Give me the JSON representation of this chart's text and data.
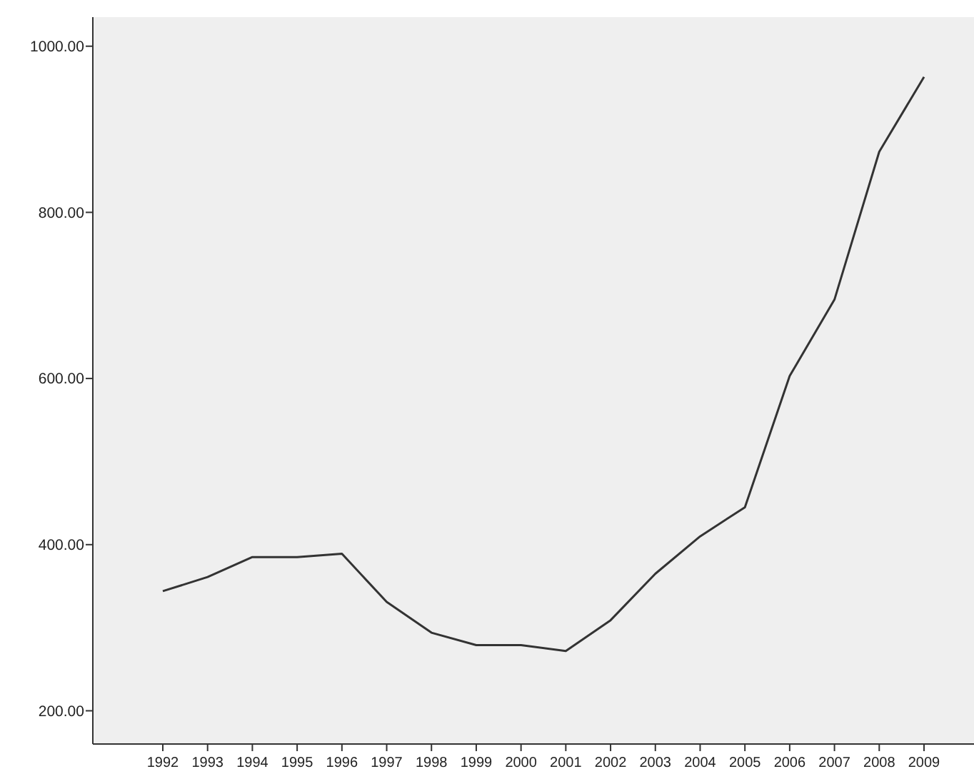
{
  "chart_data": {
    "type": "line",
    "categories": [
      "1992",
      "1993",
      "1994",
      "1995",
      "1996",
      "1997",
      "1998",
      "1999",
      "2000",
      "2001",
      "2002",
      "2003",
      "2004",
      "2005",
      "2006",
      "2007",
      "2008",
      "2009"
    ],
    "series": [
      {
        "color": "#333333",
        "values": [
          344,
          361,
          385,
          385,
          389,
          331,
          294,
          279,
          279,
          272,
          309,
          365,
          410,
          445,
          603,
          695,
          873,
          963
        ]
      }
    ],
    "ylim": [
      160,
      1035
    ],
    "yticks": [
      {
        "value": 200,
        "label": "200.00"
      },
      {
        "value": 400,
        "label": "400.00"
      },
      {
        "value": 600,
        "label": "600.00"
      },
      {
        "value": 800,
        "label": "800.00"
      },
      {
        "value": 1000,
        "label": "1000.00"
      }
    ],
    "grid": false,
    "marker": "none",
    "line_style": "solid"
  }
}
